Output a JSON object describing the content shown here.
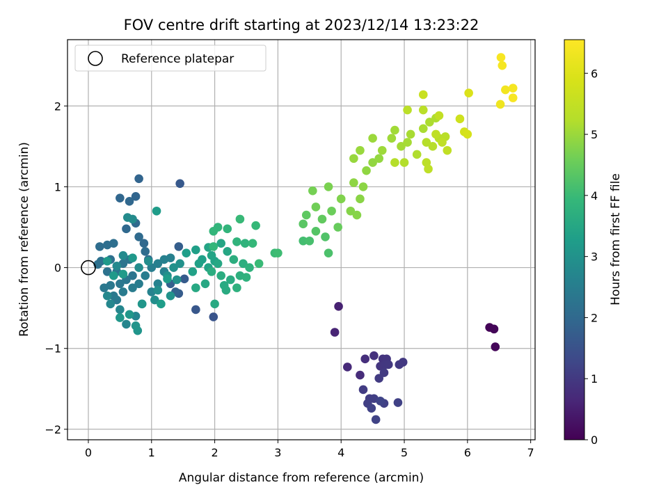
{
  "chart_data": {
    "type": "scatter",
    "title": "FOV centre drift starting at 2023/12/14 13:23:22",
    "xlabel": "Angular distance from reference (arcmin)",
    "ylabel": "Rotation from reference (arcmin)",
    "xlim": [
      -0.33,
      7.07
    ],
    "ylim": [
      -2.13,
      2.82
    ],
    "xticks": [
      0,
      1,
      2,
      3,
      4,
      5,
      6,
      7
    ],
    "yticks": [
      -2,
      -1,
      0,
      1,
      2
    ],
    "xtick_labels": [
      "0",
      "1",
      "2",
      "3",
      "4",
      "5",
      "6",
      "7"
    ],
    "ytick_labels": [
      "−2",
      "−1",
      "0",
      "1",
      "2"
    ],
    "grid": true,
    "legend": {
      "placement": "top-left",
      "entries": [
        "Reference platepar"
      ]
    },
    "reference_point": {
      "x": 0,
      "y": 0
    },
    "colorbar": {
      "label": "Hours from first FF file",
      "colormap": "viridis",
      "range": [
        0,
        6.55
      ],
      "ticks": [
        0,
        1,
        2,
        3,
        4,
        5,
        6
      ],
      "tick_labels": [
        "0",
        "1",
        "2",
        "3",
        "4",
        "5",
        "6"
      ]
    },
    "points": [
      [
        6.35,
        -0.74,
        0.05
      ],
      [
        6.42,
        -0.76,
        0.08
      ],
      [
        6.44,
        -0.98,
        0.1
      ],
      [
        3.96,
        -0.48,
        0.55
      ],
      [
        3.9,
        -0.8,
        0.6
      ],
      [
        4.1,
        -1.23,
        0.7
      ],
      [
        4.3,
        -1.33,
        0.75
      ],
      [
        4.38,
        -1.13,
        0.8
      ],
      [
        4.52,
        -1.09,
        0.85
      ],
      [
        4.66,
        -1.13,
        0.9
      ],
      [
        4.72,
        -1.13,
        0.92
      ],
      [
        4.62,
        -1.22,
        0.94
      ],
      [
        4.7,
        -1.2,
        0.96
      ],
      [
        4.75,
        -1.2,
        0.98
      ],
      [
        4.98,
        -1.17,
        1.0
      ],
      [
        4.92,
        -1.2,
        1.0
      ],
      [
        4.68,
        -1.3,
        1.02
      ],
      [
        4.6,
        -1.37,
        1.04
      ],
      [
        4.35,
        -1.51,
        1.06
      ],
      [
        4.45,
        -1.62,
        1.08
      ],
      [
        4.52,
        -1.62,
        1.1
      ],
      [
        4.42,
        -1.68,
        1.12
      ],
      [
        4.68,
        -1.68,
        1.14
      ],
      [
        4.9,
        -1.67,
        1.16
      ],
      [
        4.48,
        -1.74,
        1.18
      ],
      [
        4.55,
        -1.88,
        1.2
      ],
      [
        4.62,
        -1.65,
        1.22
      ],
      [
        1.98,
        -0.61,
        1.55
      ],
      [
        1.7,
        -0.52,
        1.6
      ],
      [
        1.45,
        1.04,
        1.65
      ],
      [
        1.52,
        -0.14,
        1.7
      ],
      [
        1.43,
        -0.32,
        1.72
      ],
      [
        1.43,
        0.26,
        1.75
      ],
      [
        1.3,
        -0.2,
        1.8
      ],
      [
        1.38,
        -0.3,
        1.85
      ],
      [
        0.8,
        1.1,
        1.9
      ],
      [
        0.75,
        0.88,
        1.92
      ],
      [
        0.5,
        0.86,
        1.94
      ],
      [
        0.65,
        0.82,
        1.96
      ],
      [
        0.88,
        0.3,
        1.98
      ],
      [
        0.6,
        0.48,
        2.0
      ],
      [
        0.75,
        0.55,
        2.02
      ],
      [
        0.8,
        0.38,
        2.04
      ],
      [
        0.9,
        0.2,
        2.06
      ],
      [
        0.95,
        0.1,
        2.08
      ],
      [
        0.18,
        0.26,
        2.1
      ],
      [
        0.3,
        0.28,
        2.12
      ],
      [
        0.4,
        0.3,
        2.14
      ],
      [
        0.35,
        0.1,
        2.16
      ],
      [
        0.2,
        0.08,
        2.18
      ],
      [
        0.15,
        0.04,
        2.2
      ],
      [
        0.3,
        -0.05,
        2.22
      ],
      [
        0.45,
        -0.05,
        2.24
      ],
      [
        0.55,
        0.05,
        2.26
      ],
      [
        0.65,
        0.1,
        2.28
      ],
      [
        0.7,
        -0.1,
        2.3
      ],
      [
        0.6,
        -0.15,
        2.32
      ],
      [
        0.5,
        -0.2,
        2.34
      ],
      [
        0.35,
        -0.22,
        2.36
      ],
      [
        0.25,
        -0.25,
        2.38
      ],
      [
        0.4,
        -0.35,
        2.4
      ],
      [
        0.45,
        -0.4,
        2.42
      ],
      [
        0.55,
        -0.3,
        2.44
      ],
      [
        0.7,
        -0.25,
        2.46
      ],
      [
        0.8,
        -0.2,
        2.48
      ],
      [
        0.9,
        -0.1,
        2.5
      ],
      [
        1.0,
        0.0,
        2.52
      ],
      [
        1.1,
        0.05,
        2.54
      ],
      [
        1.2,
        0.1,
        2.56
      ],
      [
        1.3,
        0.12,
        2.58
      ],
      [
        1.2,
        -0.05,
        2.6
      ],
      [
        1.1,
        -0.2,
        2.62
      ],
      [
        1.0,
        -0.3,
        2.64
      ],
      [
        0.85,
        -0.45,
        2.66
      ],
      [
        0.75,
        -0.6,
        2.68
      ],
      [
        0.6,
        -0.7,
        2.7
      ],
      [
        0.5,
        -0.52,
        2.72
      ],
      [
        0.35,
        -0.45,
        2.74
      ],
      [
        0.3,
        -0.35,
        2.76
      ],
      [
        0.45,
        0.02,
        2.78
      ],
      [
        0.55,
        0.15,
        2.8
      ],
      [
        0.62,
        0.62,
        2.82
      ],
      [
        0.7,
        0.6,
        2.84
      ],
      [
        0.8,
        0.0,
        2.86
      ],
      [
        0.95,
        0.08,
        2.88
      ],
      [
        1.05,
        -0.4,
        2.9
      ],
      [
        1.1,
        -0.28,
        2.92
      ],
      [
        1.25,
        -0.1,
        2.94
      ],
      [
        1.35,
        0.0,
        2.96
      ],
      [
        1.45,
        0.05,
        2.98
      ],
      [
        1.4,
        -0.15,
        3.0
      ],
      [
        1.3,
        -0.35,
        3.02
      ],
      [
        0.75,
        -0.72,
        3.04
      ],
      [
        0.78,
        -0.78,
        3.06
      ],
      [
        0.85,
        -0.45,
        3.08
      ],
      [
        0.5,
        -0.62,
        3.1
      ],
      [
        0.65,
        -0.58,
        3.12
      ],
      [
        0.7,
        0.12,
        3.14
      ],
      [
        0.3,
        0.08,
        3.16
      ],
      [
        0.4,
        -0.1,
        3.18
      ],
      [
        0.55,
        -0.08,
        3.2
      ],
      [
        1.08,
        0.7,
        3.22
      ],
      [
        1.15,
        -0.45,
        3.24
      ],
      [
        1.25,
        -0.14,
        3.26
      ],
      [
        1.55,
        0.18,
        3.28
      ],
      [
        1.7,
        0.22,
        3.3
      ],
      [
        1.8,
        0.1,
        3.32
      ],
      [
        1.75,
        0.05,
        3.34
      ],
      [
        1.65,
        -0.05,
        3.36
      ],
      [
        1.9,
        0.0,
        3.38
      ],
      [
        2.0,
        0.08,
        3.4
      ],
      [
        1.95,
        0.15,
        3.42
      ],
      [
        1.9,
        0.25,
        3.44
      ],
      [
        2.1,
        0.3,
        3.46
      ],
      [
        2.2,
        0.2,
        3.48
      ],
      [
        2.05,
        0.05,
        3.5
      ],
      [
        1.85,
        -0.2,
        3.52
      ],
      [
        1.7,
        -0.25,
        3.54
      ],
      [
        2.0,
        -0.45,
        3.56
      ],
      [
        2.15,
        -0.22,
        3.58
      ],
      [
        2.18,
        -0.28,
        3.6
      ],
      [
        2.25,
        -0.15,
        3.62
      ],
      [
        2.1,
        -0.1,
        3.64
      ],
      [
        1.95,
        -0.05,
        3.66
      ],
      [
        2.3,
        0.1,
        3.68
      ],
      [
        2.45,
        0.05,
        3.7
      ],
      [
        2.4,
        -0.1,
        3.72
      ],
      [
        2.35,
        -0.25,
        3.74
      ],
      [
        2.5,
        -0.12,
        3.76
      ],
      [
        2.55,
        0.0,
        3.78
      ],
      [
        2.48,
        0.3,
        3.8
      ],
      [
        2.35,
        0.32,
        3.82
      ],
      [
        2.2,
        0.48,
        3.84
      ],
      [
        2.05,
        0.5,
        3.86
      ],
      [
        1.98,
        0.45,
        3.88
      ],
      [
        1.98,
        0.26,
        3.9
      ],
      [
        2.6,
        0.3,
        3.92
      ],
      [
        2.65,
        0.52,
        3.94
      ],
      [
        2.4,
        0.6,
        3.96
      ],
      [
        2.7,
        0.05,
        3.98
      ],
      [
        2.95,
        0.18,
        4.0
      ],
      [
        3.0,
        0.18,
        4.05
      ],
      [
        3.4,
        0.33,
        4.1
      ],
      [
        3.5,
        0.33,
        4.15
      ],
      [
        3.8,
        0.18,
        4.2
      ],
      [
        3.75,
        0.38,
        4.25
      ],
      [
        3.6,
        0.45,
        4.3
      ],
      [
        3.4,
        0.54,
        4.35
      ],
      [
        3.45,
        0.65,
        4.4
      ],
      [
        3.7,
        0.6,
        4.45
      ],
      [
        3.95,
        0.5,
        4.5
      ],
      [
        3.85,
        0.7,
        4.55
      ],
      [
        3.6,
        0.75,
        4.6
      ],
      [
        3.55,
        0.95,
        4.65
      ],
      [
        3.8,
        1.0,
        4.7
      ],
      [
        4.0,
        0.85,
        4.75
      ],
      [
        4.15,
        0.7,
        4.8
      ],
      [
        4.25,
        0.65,
        4.82
      ],
      [
        4.3,
        0.85,
        4.84
      ],
      [
        4.35,
        1.0,
        4.86
      ],
      [
        4.2,
        1.05,
        4.88
      ],
      [
        4.4,
        1.2,
        4.9
      ],
      [
        4.5,
        1.3,
        4.92
      ],
      [
        4.6,
        1.35,
        4.94
      ],
      [
        4.2,
        1.35,
        4.96
      ],
      [
        4.3,
        1.45,
        4.98
      ],
      [
        4.5,
        1.6,
        5.0
      ],
      [
        4.65,
        1.45,
        5.02
      ],
      [
        4.8,
        1.6,
        5.04
      ],
      [
        4.85,
        1.7,
        5.06
      ],
      [
        4.95,
        1.5,
        5.08
      ],
      [
        5.05,
        1.55,
        5.1
      ],
      [
        5.1,
        1.65,
        5.12
      ],
      [
        5.3,
        1.72,
        5.14
      ],
      [
        5.4,
        1.8,
        5.16
      ],
      [
        5.5,
        1.85,
        5.18
      ],
      [
        5.2,
        1.4,
        5.2
      ],
      [
        5.0,
        1.3,
        5.22
      ],
      [
        4.85,
        1.3,
        5.24
      ],
      [
        5.35,
        1.55,
        5.26
      ],
      [
        5.45,
        1.5,
        5.28
      ],
      [
        5.55,
        1.6,
        5.3
      ],
      [
        5.65,
        1.62,
        5.32
      ],
      [
        5.3,
        1.95,
        5.34
      ],
      [
        5.05,
        1.95,
        5.36
      ],
      [
        5.35,
        1.3,
        5.38
      ],
      [
        5.38,
        1.22,
        5.4
      ],
      [
        5.5,
        1.65,
        5.42
      ],
      [
        5.6,
        1.55,
        5.44
      ],
      [
        5.68,
        1.45,
        5.46
      ],
      [
        5.55,
        1.88,
        5.48
      ],
      [
        5.3,
        2.14,
        5.6
      ],
      [
        5.88,
        1.84,
        5.7
      ],
      [
        5.95,
        1.68,
        5.8
      ],
      [
        6.0,
        1.65,
        5.85
      ],
      [
        6.02,
        2.16,
        5.95
      ],
      [
        6.53,
        2.6,
        6.45
      ],
      [
        6.55,
        2.5,
        6.4
      ],
      [
        6.6,
        2.2,
        6.35
      ],
      [
        6.52,
        2.02,
        6.3
      ],
      [
        6.72,
        2.22,
        6.4
      ],
      [
        6.72,
        2.1,
        6.45
      ]
    ]
  }
}
